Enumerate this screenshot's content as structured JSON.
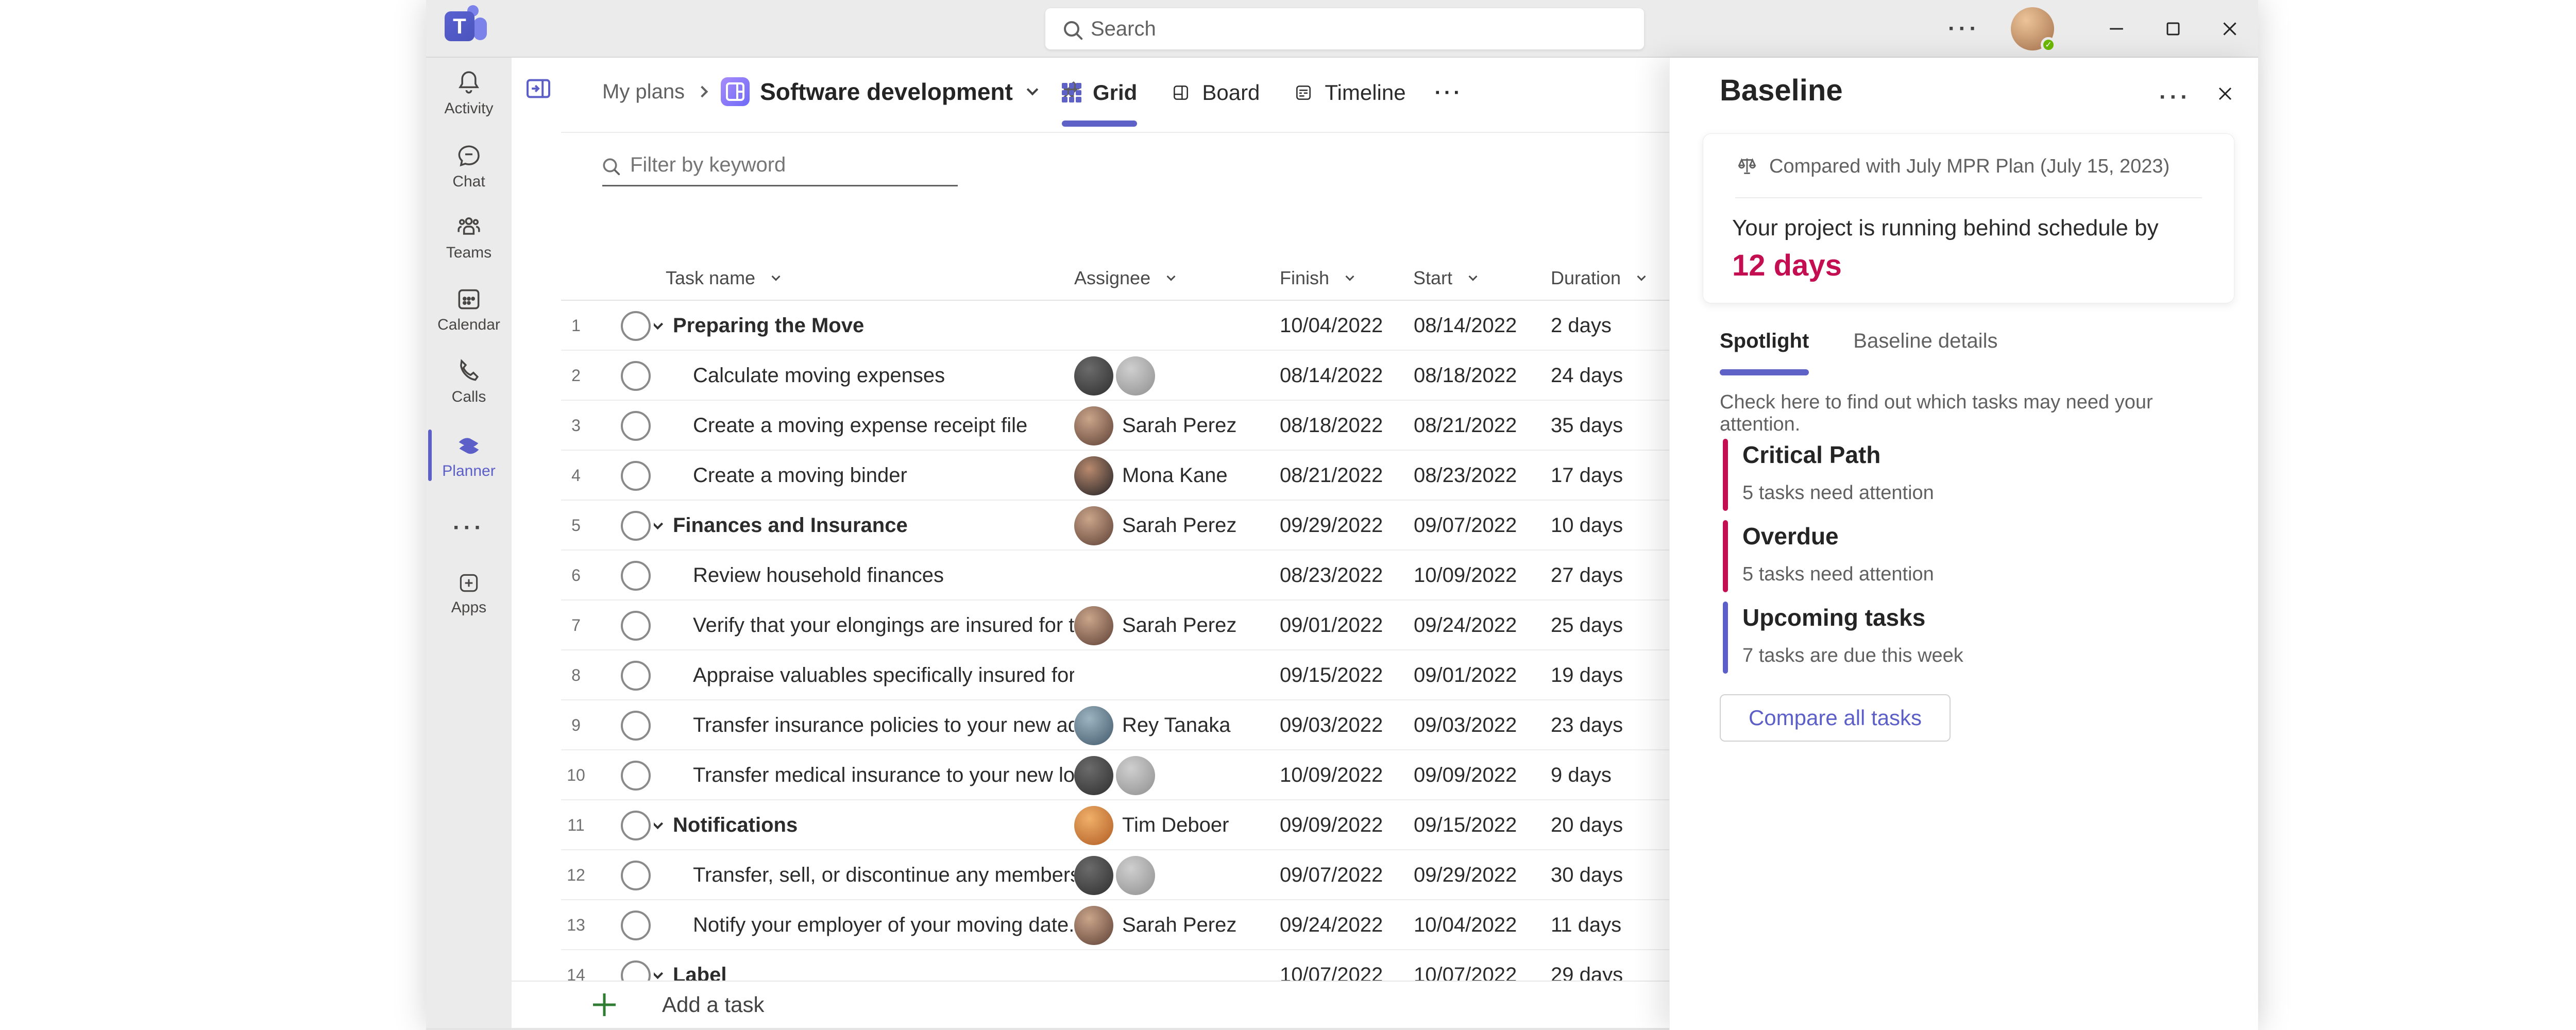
{
  "titlebar": {
    "search_placeholder": "Search",
    "more_label": "···",
    "avatar_status": "available"
  },
  "sidebar": {
    "items": [
      {
        "label": "Activity"
      },
      {
        "label": "Chat"
      },
      {
        "label": "Teams"
      },
      {
        "label": "Calendar"
      },
      {
        "label": "Calls"
      },
      {
        "label": "Planner",
        "active": true
      },
      {
        "label": "···"
      },
      {
        "label": "Apps"
      }
    ]
  },
  "main": {
    "breadcrumb": {
      "root": "My plans",
      "plan": "Software development"
    },
    "tabs": [
      {
        "label": "Grid",
        "active": true
      },
      {
        "label": "Board"
      },
      {
        "label": "Timeline"
      },
      {
        "label": "···"
      }
    ],
    "filter_placeholder": "Filter by keyword",
    "table": {
      "headers": [
        "Task name",
        "Assignee",
        "Finish",
        "Start",
        "Duration"
      ],
      "rows": [
        {
          "num": "1",
          "group": true,
          "name": "Preparing the Move",
          "avatars": [],
          "assignee_name": "",
          "finish": "10/04/2022",
          "start": "08/14/2022",
          "duration": "2 days"
        },
        {
          "num": "2",
          "group": false,
          "name": "Calculate moving expenses",
          "avatars": [
            {
              "c1": "#6b6b6b",
              "c2": "#2e2e2e"
            },
            {
              "c1": "#cfcfcf",
              "c2": "#8f8f8f"
            }
          ],
          "assignee_name": "",
          "finish": "08/14/2022",
          "start": "08/18/2022",
          "duration": "24 days"
        },
        {
          "num": "3",
          "group": false,
          "name": "Create a moving expense receipt file",
          "avatars": [
            {
              "c1": "#caa58a",
              "c2": "#5d3f35"
            }
          ],
          "assignee_name": "Sarah Perez",
          "finish": "08/18/2022",
          "start": "08/21/2022",
          "duration": "35 days"
        },
        {
          "num": "4",
          "group": false,
          "name": "Create a moving binder",
          "avatars": [
            {
              "c1": "#b98a6e",
              "c2": "#1f1f24"
            }
          ],
          "assignee_name": "Mona Kane",
          "finish": "08/21/2022",
          "start": "08/23/2022",
          "duration": "17 days"
        },
        {
          "num": "5",
          "group": true,
          "name": "Finances and Insurance",
          "avatars": [
            {
              "c1": "#caa58a",
              "c2": "#5d3f35"
            }
          ],
          "assignee_name": "Sarah Perez",
          "finish": "09/29/2022",
          "start": "09/07/2022",
          "duration": "10 days"
        },
        {
          "num": "6",
          "group": false,
          "name": "Review household finances",
          "avatars": [],
          "assignee_name": "",
          "finish": "08/23/2022",
          "start": "10/09/2022",
          "duration": "27 days"
        },
        {
          "num": "7",
          "group": false,
          "name": "Verify that your elongings are insured for t...",
          "avatars": [
            {
              "c1": "#caa58a",
              "c2": "#5d3f35"
            }
          ],
          "assignee_name": "Sarah Perez",
          "finish": "09/01/2022",
          "start": "09/24/2022",
          "duration": "25 days"
        },
        {
          "num": "8",
          "group": false,
          "name": "Appraise valuables specifically insured for...",
          "avatars": [],
          "assignee_name": "",
          "finish": "09/15/2022",
          "start": "09/01/2022",
          "duration": "19 days"
        },
        {
          "num": "9",
          "group": false,
          "name": "Transfer insurance policies to your new addr...",
          "avatars": [
            {
              "c1": "#9db4c0",
              "c2": "#41586b"
            }
          ],
          "assignee_name": "Rey Tanaka",
          "finish": "09/03/2022",
          "start": "09/03/2022",
          "duration": "23 days"
        },
        {
          "num": "10",
          "group": false,
          "name": "Transfer medical insurance to your new locati...",
          "avatars": [
            {
              "c1": "#6b6b6b",
              "c2": "#2e2e2e"
            },
            {
              "c1": "#cfcfcf",
              "c2": "#8f8f8f"
            }
          ],
          "assignee_name": "",
          "finish": "10/09/2022",
          "start": "09/09/2022",
          "duration": "9 days"
        },
        {
          "num": "11",
          "group": true,
          "name": "Notifications",
          "avatars": [
            {
              "c1": "#f0b06a",
              "c2": "#b05c22"
            }
          ],
          "assignee_name": "Tim Deboer",
          "finish": "09/09/2022",
          "start": "09/15/2022",
          "duration": "20 days"
        },
        {
          "num": "12",
          "group": false,
          "name": "Transfer, sell, or discontinue any members...",
          "avatars": [
            {
              "c1": "#6b6b6b",
              "c2": "#2e2e2e"
            },
            {
              "c1": "#cfcfcf",
              "c2": "#8f8f8f"
            }
          ],
          "assignee_name": "",
          "finish": "09/07/2022",
          "start": "09/29/2022",
          "duration": "30 days"
        },
        {
          "num": "13",
          "group": false,
          "name": "Notify your employer of your moving date...",
          "avatars": [
            {
              "c1": "#caa58a",
              "c2": "#5d3f35"
            }
          ],
          "assignee_name": "Sarah Perez",
          "finish": "09/24/2022",
          "start": "10/04/2022",
          "duration": "11 days"
        },
        {
          "num": "14",
          "group": true,
          "name": "Label",
          "avatars": [],
          "assignee_name": "",
          "finish": "10/07/2022",
          "start": "10/07/2022",
          "duration": "29 days"
        }
      ]
    },
    "footer": {
      "add_task": "Add a task"
    }
  },
  "panel": {
    "title": "Baseline",
    "more_label": "···",
    "compared": "Compared with July MPR Plan (July 15, 2023)",
    "status_line": "Your project is running behind schedule by",
    "status_value": "12 days",
    "tabs": [
      {
        "label": "Spotlight",
        "active": true
      },
      {
        "label": "Baseline details"
      }
    ],
    "note": "Check here to find out which tasks may need your attention.",
    "spotlight": [
      {
        "title": "Critical Path",
        "subtitle": "5 tasks need attention",
        "color": "#c40e52"
      },
      {
        "title": "Overdue",
        "subtitle": "5 tasks need attention",
        "color": "#c40e52"
      },
      {
        "title": "Upcoming tasks",
        "subtitle": "7 tasks are due this week",
        "color": "#5b5fc7"
      }
    ],
    "button": "Compare all tasks"
  },
  "colors": {
    "accent": "#5b5fc7",
    "crimson": "#c40e52",
    "chrome": "#ebebeb",
    "presence_green": "#6bb700",
    "add_green": "#2e7d32"
  }
}
